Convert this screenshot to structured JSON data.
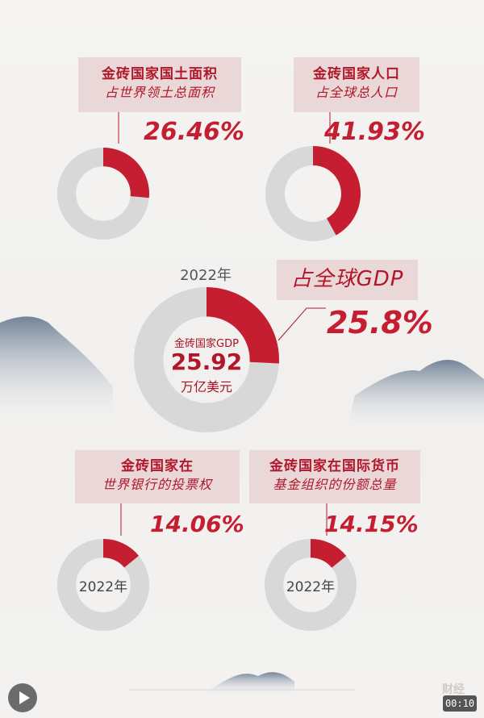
{
  "chart_data": [
    {
      "type": "pie",
      "title_line1": "金砖国家国土面积",
      "title_line2": "占世界领土总面积",
      "value_label": "26.46%",
      "values": [
        26.46,
        73.54
      ]
    },
    {
      "type": "pie",
      "title_line1": "金砖国家人口",
      "title_line2": "占全球总人口",
      "value_label": "41.93%",
      "values": [
        41.93,
        58.07
      ]
    },
    {
      "type": "pie",
      "year": "2022年",
      "title_line1": "占全球GDP",
      "value_label": "25.8%",
      "center_label": "金砖国家GDP",
      "center_value": "25.92",
      "center_unit": "万亿美元",
      "values": [
        25.8,
        74.2
      ]
    },
    {
      "type": "pie",
      "title_line1": "金砖国家在",
      "title_line2": "世界银行的投票权",
      "value_label": "14.06%",
      "center_year": "2022年",
      "values": [
        14.06,
        85.94
      ]
    },
    {
      "type": "pie",
      "title_line1": "金砖国家在国际货币",
      "title_line2": "基金组织的份额总量",
      "value_label": "14.15%",
      "center_year": "2022年",
      "values": [
        14.15,
        85.85
      ]
    }
  ],
  "colors": {
    "accent": "#c41e30",
    "ring": "#d8d8d8",
    "card": "#ead8d8"
  },
  "overlay": {
    "timer": "00:10",
    "watermark": "财经",
    "play_icon": "play-icon"
  }
}
